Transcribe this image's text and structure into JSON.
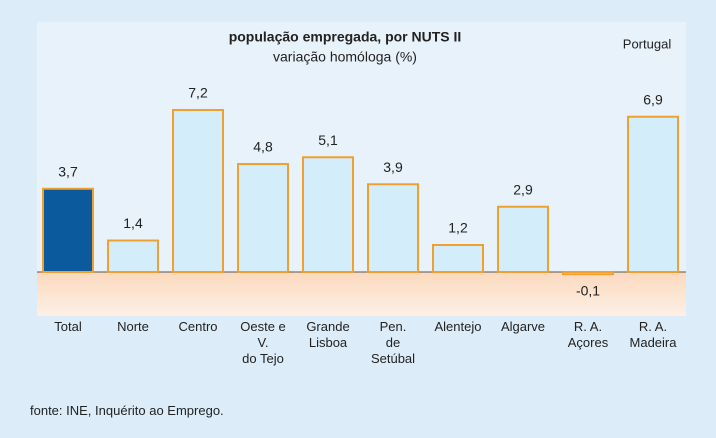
{
  "chart_data": {
    "type": "bar",
    "title": "população empregada, por NUTS II",
    "subtitle": "variação homóloga (%)",
    "annotation": "Portugal",
    "source": "fonte: INE, Inquérito ao Emprego.",
    "categories": [
      "Total",
      "Norte",
      "Centro",
      "Oeste e\nV.\ndo Tejo",
      "Grande\nLisboa",
      "Pen.\nde\nSetúbal",
      "Alentejo",
      "Algarve",
      "R. A.\nAçores",
      "R. A.\nMadeira"
    ],
    "values": [
      3.7,
      1.4,
      7.2,
      4.8,
      5.1,
      3.9,
      1.2,
      2.9,
      -0.1,
      6.9
    ],
    "value_labels": [
      "3,7",
      "1,4",
      "7,2",
      "4,8",
      "5,1",
      "3,9",
      "1,2",
      "2,9",
      "-0,1",
      "6,9"
    ],
    "colors": [
      "#0b5a9e",
      "#d4edfb",
      "#d4edfb",
      "#d4edfb",
      "#d4edfb",
      "#d4edfb",
      "#d4edfb",
      "#d4edfb",
      "#d4edfb",
      "#d4edfb"
    ],
    "edge_color": "#f0a030"
  }
}
